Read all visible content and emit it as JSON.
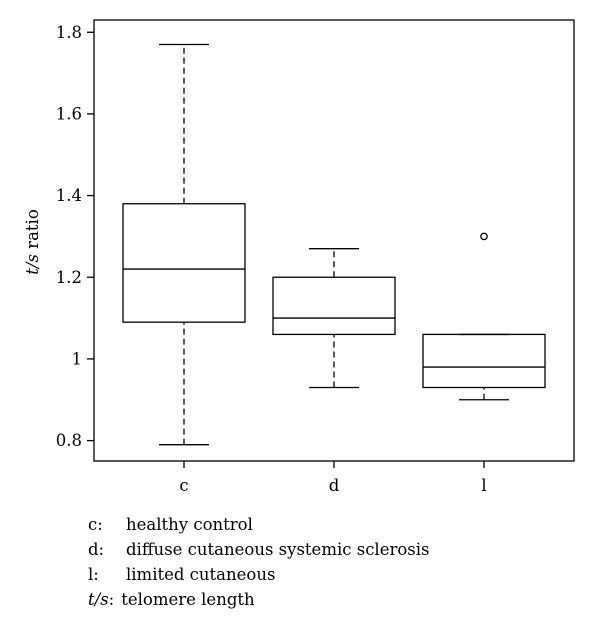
{
  "chart_data": {
    "type": "box",
    "ylabel": {
      "italic": "t/s",
      "rest": " ratio"
    },
    "ylim": [
      0.75,
      1.83
    ],
    "yticks": [
      0.8,
      1,
      1.2,
      1.4,
      1.6,
      1.8
    ],
    "ytick_labels": [
      "0.8",
      "1",
      "1.2",
      "1.4",
      "1.6",
      "1.8"
    ],
    "categories": [
      "c",
      "d",
      "l"
    ],
    "boxes": [
      {
        "category": "c",
        "whisker_low": 0.79,
        "q1": 1.09,
        "median": 1.22,
        "q3": 1.38,
        "whisker_high": 1.77,
        "outliers": []
      },
      {
        "category": "d",
        "whisker_low": 0.93,
        "q1": 1.06,
        "median": 1.1,
        "q3": 1.2,
        "whisker_high": 1.27,
        "outliers": []
      },
      {
        "category": "l",
        "whisker_low": 0.9,
        "q1": 0.93,
        "median": 0.98,
        "q3": 1.06,
        "whisker_high": 1.06,
        "outliers": [
          1.3
        ]
      }
    ],
    "grid": false
  },
  "legend": [
    {
      "key": "c:",
      "text": "healthy control",
      "italic_key": false
    },
    {
      "key": "d:",
      "text": "diffuse cutaneous systemic sclerosis",
      "italic_key": false
    },
    {
      "key": "l:",
      "text": "limited cutaneous",
      "italic_key": false
    },
    {
      "key_italic": "t/s",
      "key_rest": ":",
      "text": "telomere length",
      "italic_key": true
    }
  ]
}
